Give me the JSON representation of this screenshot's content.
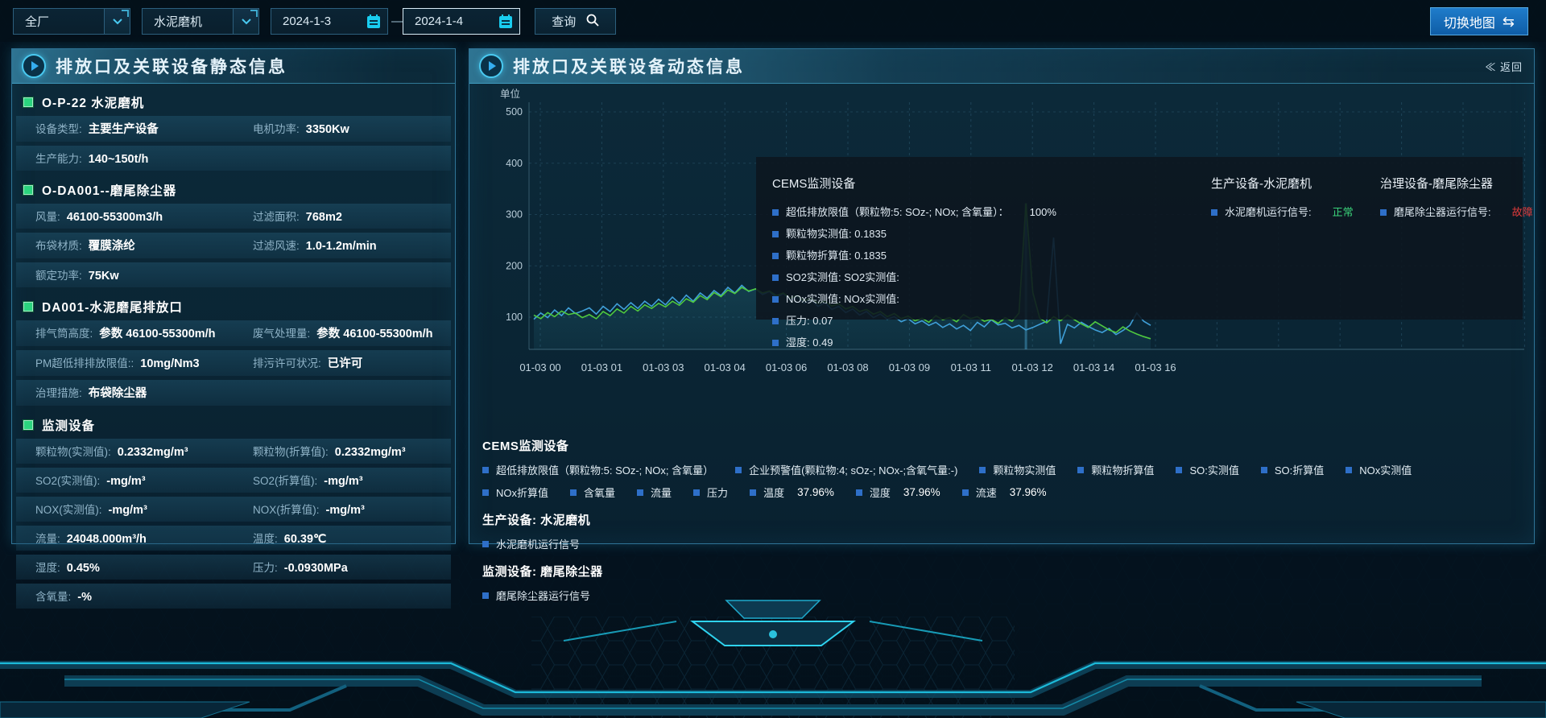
{
  "topbar": {
    "select_plant": "全厂",
    "select_device": "水泥磨机",
    "date_start": "2024-1-3",
    "date_end": "2024-1-4",
    "range_dash": "—",
    "query_label": "查询",
    "switch_map_label": "切换地图",
    "swap_icon": "⇆"
  },
  "left_panel": {
    "title": "排放口及关联设备静态信息",
    "sections": [
      {
        "heading": "O-P-22 水泥磨机",
        "rows": [
          [
            {
              "label": "设备类型:",
              "value": "主要生产设备"
            },
            {
              "label": "电机功率:",
              "value": "3350Kw"
            }
          ],
          [
            {
              "label": "生产能力:",
              "value": "140~150t/h"
            }
          ]
        ]
      },
      {
        "heading": "O-DA001--磨尾除尘器",
        "rows": [
          [
            {
              "label": "风量:",
              "value": "46100-55300m3/h"
            },
            {
              "label": "过滤面积:",
              "value": "768m2"
            }
          ],
          [
            {
              "label": "布袋材质:",
              "value": "覆膜涤纶"
            },
            {
              "label": "过滤风速:",
              "value": "1.0-1.2m/min"
            }
          ],
          [
            {
              "label": "额定功率:",
              "value": "75Kw"
            }
          ]
        ]
      },
      {
        "heading": "DA001-水泥磨尾排放口",
        "rows": [
          [
            {
              "label": "排气筒高度:",
              "value": "参数 46100-55300m/h"
            },
            {
              "label": "废气处理量:",
              "value": "参数 46100-55300m/h"
            }
          ],
          [
            {
              "label": "PM超低排排放限值::",
              "value": "10mg/Nm3"
            },
            {
              "label": "排污许可状况:",
              "value": "已许可"
            }
          ],
          [
            {
              "label": "治理措施:",
              "value": "布袋除尘器"
            }
          ]
        ]
      },
      {
        "heading": "监测设备",
        "rows": [
          [
            {
              "label": "颗粒物(实测值):",
              "value": "0.2332mg/m³"
            },
            {
              "label": "颗粒物(折算值):",
              "value": "0.2332mg/m³"
            }
          ],
          [
            {
              "label": "SO2(实测值):",
              "value": "-mg/m³"
            },
            {
              "label": "SO2(折算值):",
              "value": "-mg/m³"
            }
          ],
          [
            {
              "label": "NOX(实测值):",
              "value": "-mg/m³"
            },
            {
              "label": "NOX(折算值):",
              "value": "-mg/m³"
            }
          ],
          [
            {
              "label": "流量:",
              "value": "24048.000m³/h"
            },
            {
              "label": "温度:",
              "value": "60.39℃"
            }
          ],
          [
            {
              "label": "湿度:",
              "value": "0.45%"
            },
            {
              "label": "压力:",
              "value": "-0.0930MPa"
            }
          ],
          [
            {
              "label": "含氧量:",
              "value": "-%"
            }
          ]
        ]
      }
    ]
  },
  "right_panel": {
    "title": "排放口及关联设备动态信息",
    "back_label": "≪ 返回",
    "unit_label": "单位",
    "tooltip": {
      "groups": [
        {
          "title": "CEMS监测设备",
          "items": [
            {
              "text": "超低排放限值（颗粒物:5: SOz-; NOx; 含氧量）：",
              "value": "100%",
              "value_color": "#e6eef5"
            },
            {
              "text": "颗粒物实测值: 0.1835"
            },
            {
              "text": "颗粒物折算值: 0.1835"
            },
            {
              "text": "SO2实测值: SO2实测值:"
            },
            {
              "text": "NOx实测值: NOx实测值:"
            },
            {
              "text": "压力: 0.07"
            },
            {
              "text": "湿度: 0.49"
            }
          ]
        },
        {
          "title": "生产设备-水泥磨机",
          "items": [
            {
              "text": "水泥磨机运行信号:",
              "value": "正常",
              "value_color": "#3ad179"
            }
          ]
        },
        {
          "title": "治理设备-磨尾除尘器",
          "items": [
            {
              "text": "磨尾除尘器运行信号:",
              "value": "故障",
              "value_color": "#e03b3b"
            }
          ]
        }
      ]
    },
    "legend": {
      "cems_heading": "CEMS监测设备",
      "cems_row1": [
        {
          "label": "超低排放限值（颗粒物:5: SOz-; NOx; 含氧量）"
        },
        {
          "label": "企业预警值(颗粒物:4; sOz-; NOx-;含氧气量:-)"
        },
        {
          "label": "颗粒物实测值"
        },
        {
          "label": "颗粒物折算值"
        },
        {
          "label": "SO:实测值"
        },
        {
          "label": "SO:折算值"
        },
        {
          "label": "NOx实测值"
        }
      ],
      "cems_row2": [
        {
          "label": "NOx折算值"
        },
        {
          "label": "含氧量"
        },
        {
          "label": "流量"
        },
        {
          "label": "压力"
        },
        {
          "label": "温度",
          "value": "37.96%"
        },
        {
          "label": "湿度",
          "value": "37.96%"
        },
        {
          "label": "流速",
          "value": "37.96%"
        }
      ],
      "production_heading": "生产设备: 水泥磨机",
      "production_item": "水泥磨机运行信号",
      "monitor_heading": "监测设备: 磨尾除尘器",
      "monitor_item": "磨尾除尘器运行信号"
    }
  },
  "chart_data": {
    "type": "line",
    "title": "",
    "xlabel": "",
    "ylabel": "单位",
    "ylim": [
      0,
      500
    ],
    "yticks": [
      500,
      400,
      300,
      200,
      100
    ],
    "grid": true,
    "x_labels": [
      "01-03 00",
      "01-03 01",
      "01-03 03",
      "01-03 04",
      "01-03 06",
      "01-03 08",
      "01-03 09",
      "01-03 11",
      "01-03 12",
      "01-03 14",
      "01-03 16"
    ],
    "series": [
      {
        "name": "blue-line",
        "color": "#3f9fd8",
        "values": [
          96,
          108,
          99,
          114,
          103,
          118,
          107,
          112,
          118,
          106,
          121,
          111,
          126,
          115,
          128,
          117,
          131,
          121,
          135,
          124,
          139,
          127,
          143,
          131,
          147,
          137,
          152,
          142,
          158,
          147,
          162,
          150,
          155,
          144,
          150,
          138,
          146,
          133,
          141,
          127,
          134,
          121,
          128,
          115,
          121,
          109,
          116,
          104,
          111,
          99,
          106,
          96,
          101,
          91,
          97,
          87,
          93,
          84,
          90,
          80,
          87,
          77,
          84,
          74,
          90,
          81,
          95,
          85,
          88,
          79,
          84,
          75,
          80,
          86,
          92,
          255,
          48,
          86,
          79,
          90,
          82,
          75,
          70,
          78,
          66,
          74,
          84,
          108,
          92,
          84
        ]
      },
      {
        "name": "green-line",
        "color": "#4fc93f",
        "values": [
          104,
          97,
          109,
          101,
          112,
          105,
          108,
          99,
          105,
          97,
          111,
          103,
          116,
          108,
          121,
          112,
          124,
          117,
          127,
          120,
          131,
          123,
          136,
          129,
          142,
          134,
          148,
          140,
          153,
          146,
          158,
          151,
          155,
          147,
          151,
          142,
          147,
          137,
          142,
          132,
          137,
          127,
          131,
          122,
          126,
          116,
          121,
          111,
          115,
          106,
          111,
          101,
          107,
          97,
          102,
          93,
          98,
          90,
          103,
          95,
          99,
          91,
          105,
          97,
          101,
          92,
          96,
          88,
          99,
          92,
          108,
          322,
          148,
          98,
          89,
          101,
          93,
          104,
          95,
          87,
          80,
          91,
          83,
          75,
          70,
          81,
          73,
          67,
          62,
          58
        ]
      }
    ]
  },
  "colors": {
    "accent": "#2fd3ef",
    "status_ok": "#3ad179",
    "status_fault": "#e03b3b",
    "legend_bullet": "#2e6fc8",
    "grid_line": "#33637c"
  }
}
